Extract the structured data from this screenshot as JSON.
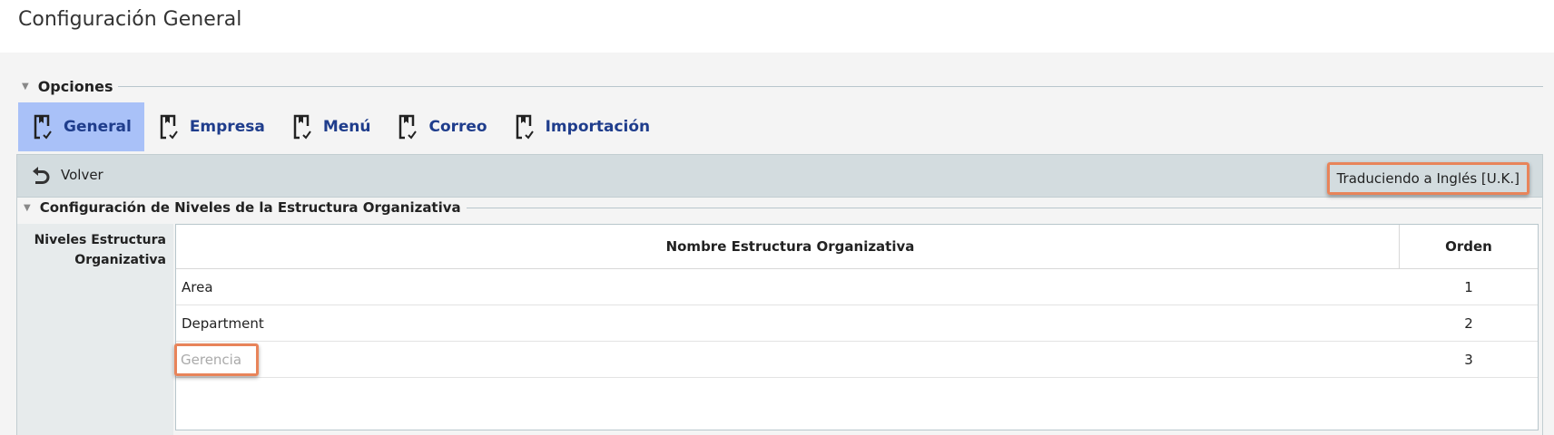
{
  "page": {
    "title": "Configuración General"
  },
  "options": {
    "legend": "Opciones",
    "tabs": [
      {
        "label": "General",
        "active": true
      },
      {
        "label": "Empresa"
      },
      {
        "label": "Menú"
      },
      {
        "label": "Correo"
      },
      {
        "label": "Importación"
      }
    ]
  },
  "toolbar": {
    "back_label": "Volver",
    "translation_status": "Traduciendo a Inglés [U.K.]"
  },
  "section": {
    "legend": "Configuración de Niveles de la Estructura Organizativa",
    "field_label": "Niveles Estructura Organizativa",
    "table": {
      "headers": [
        "Nombre Estructura Organizativa",
        "Orden"
      ],
      "rows": [
        {
          "name": "Area",
          "order": "1"
        },
        {
          "name": "Department",
          "order": "2"
        },
        {
          "name": "Gerencia",
          "order": "3",
          "placeholder": true
        }
      ]
    }
  },
  "colors": {
    "accent": "#1f3d8c",
    "active_tab": "#a9c1f8",
    "highlight": "#e8845a"
  }
}
